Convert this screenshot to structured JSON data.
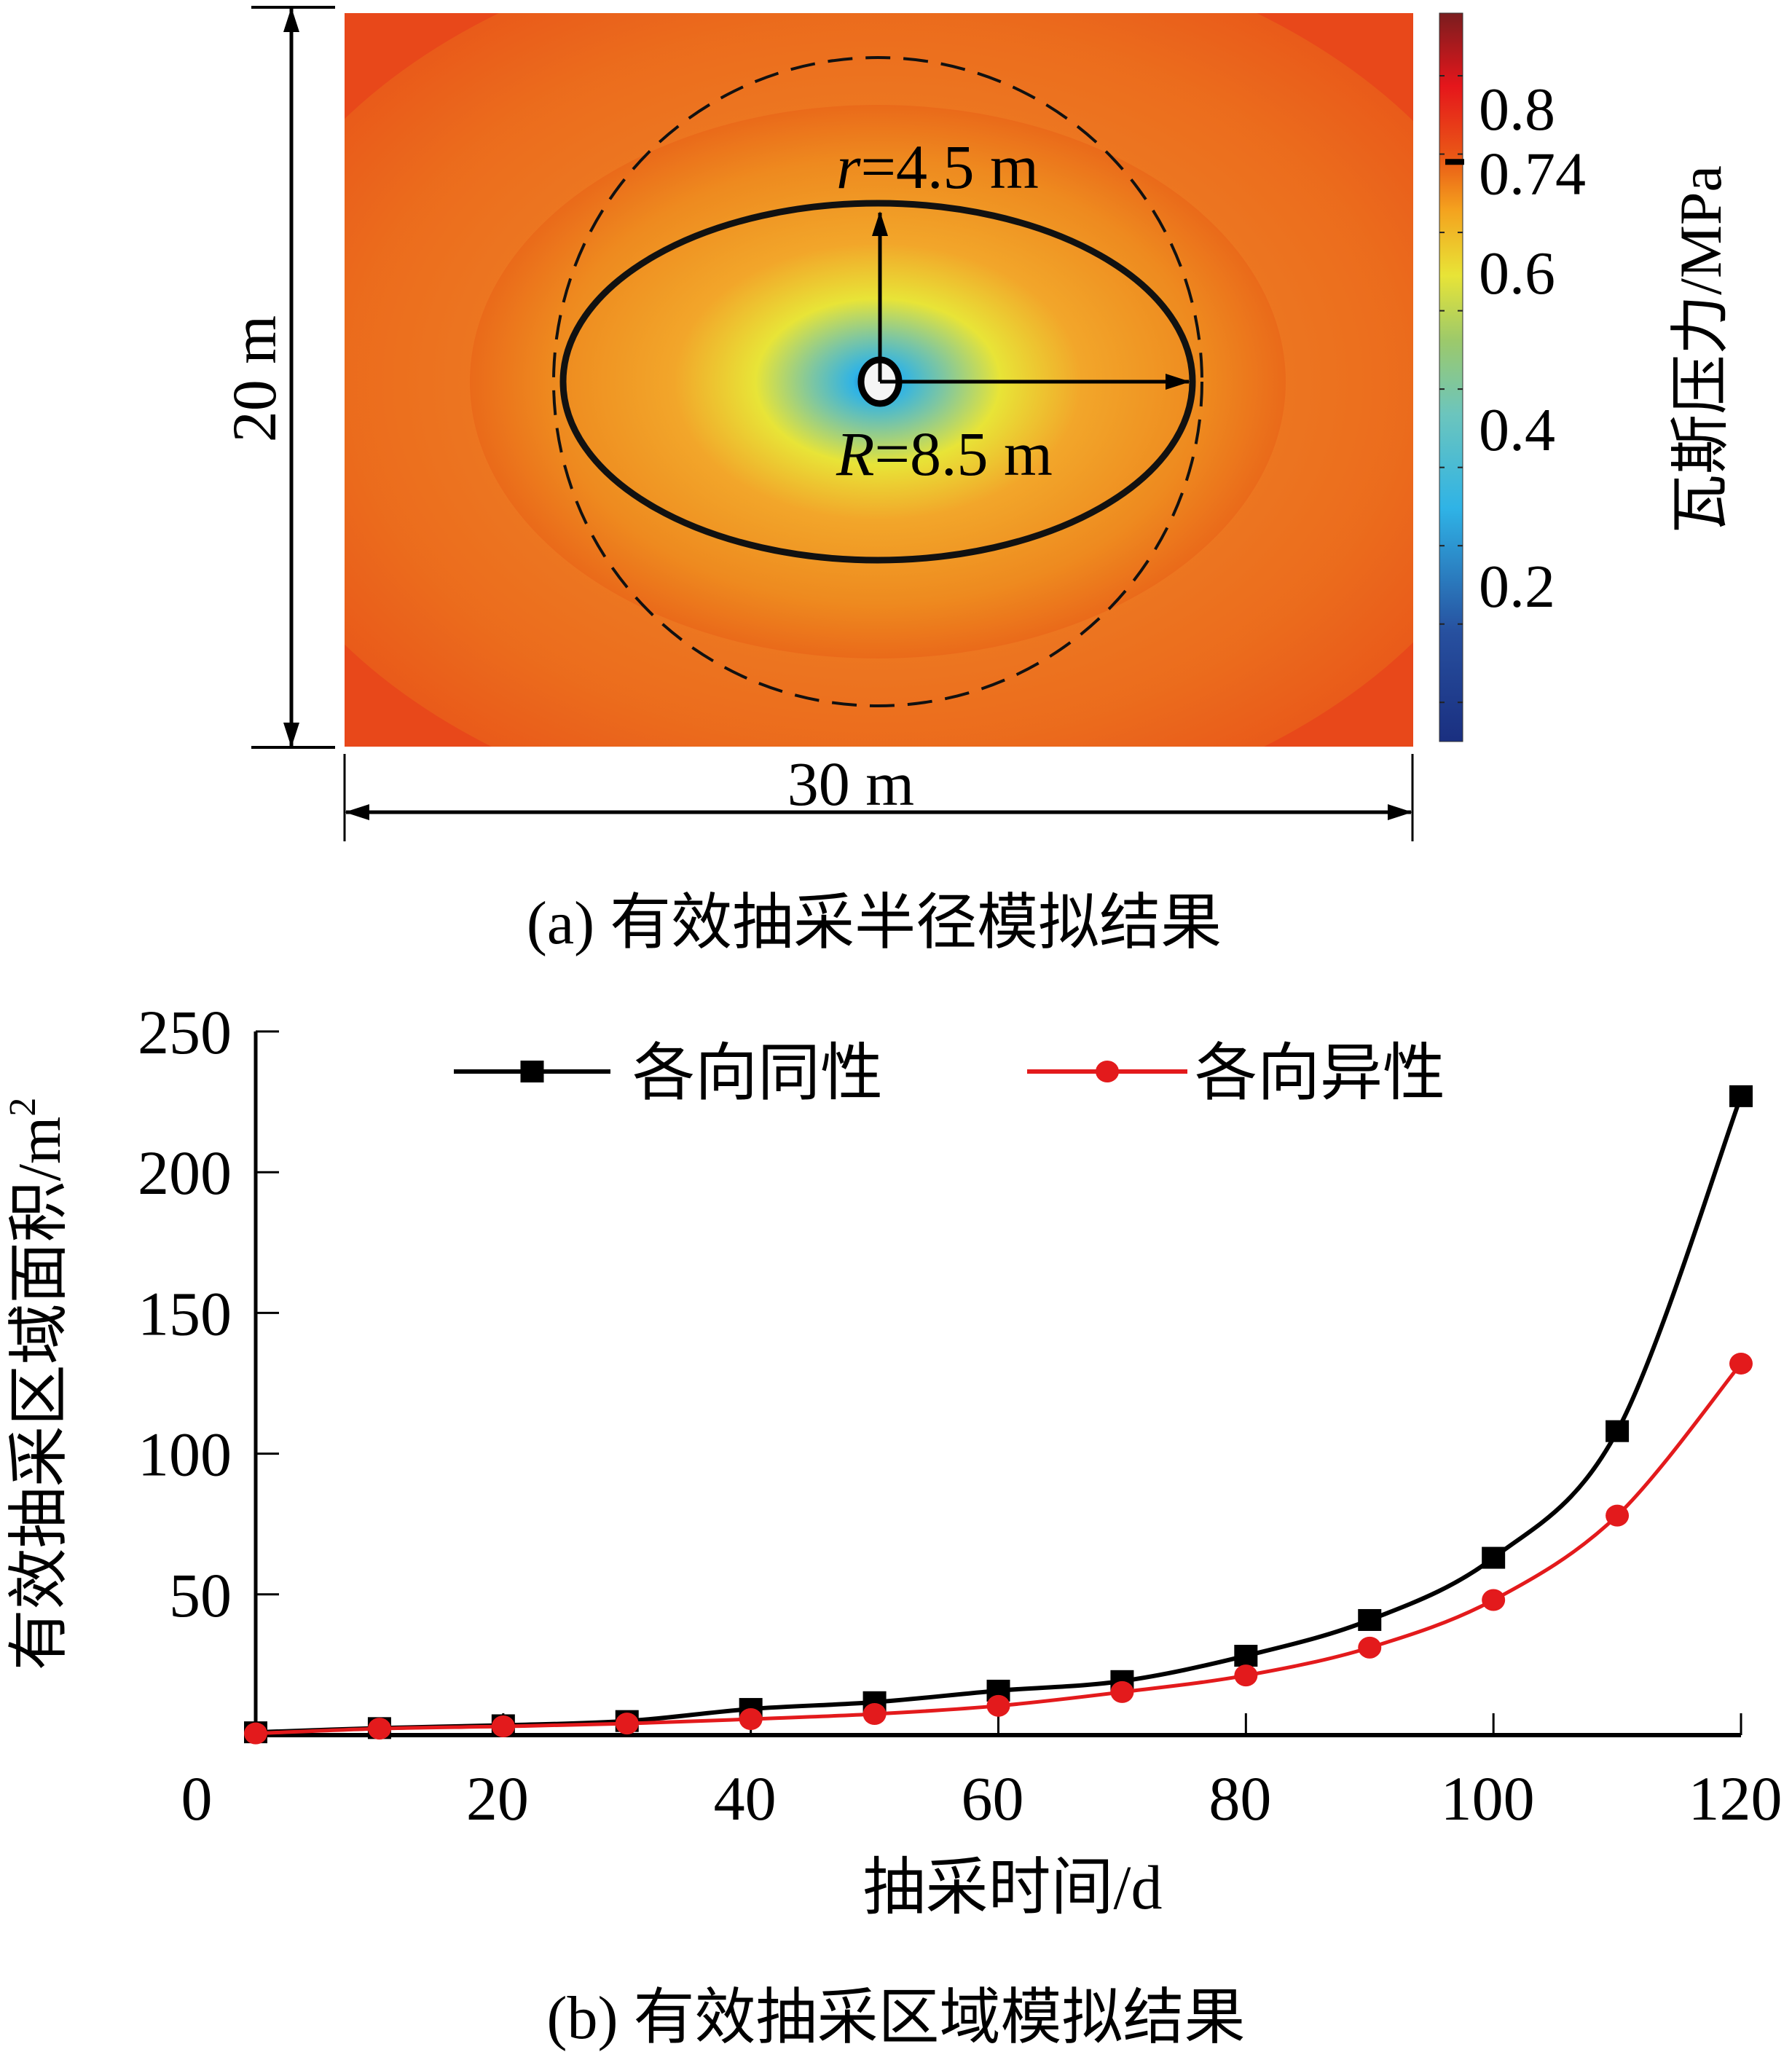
{
  "figure_a": {
    "caption": "(a) 有效抽采半径模拟结果",
    "width_label": "30 m",
    "height_label": "20 m",
    "r_label_var": "r",
    "r_label_rest": "=4.5 m",
    "R_label_var": "R",
    "R_label_rest": "=8.5 m",
    "colorbar": {
      "title": "瓦斯压力/MPa",
      "ticks": [
        "0.8",
        "0.74",
        "0.6",
        "0.4",
        "0.2"
      ],
      "tick_values": [
        0.8,
        0.74,
        0.6,
        0.4,
        0.2
      ],
      "range": [
        0.0,
        0.93
      ],
      "highlight_value": 0.74,
      "colors": [
        "#1a2f80",
        "#2a5bb0",
        "#2fb3e6",
        "#6cc5bd",
        "#9cc96b",
        "#e8e437",
        "#f4a21e",
        "#ea5a16",
        "#e5161b",
        "#7a1d1f"
      ]
    },
    "domain_m": {
      "width": 30,
      "height": 20
    },
    "ellipse_m": {
      "major_radius": 8.5,
      "minor_radius": 4.5
    },
    "background_color": "#e84a1a"
  },
  "chart_data": {
    "type": "line",
    "title": "",
    "caption": "(b) 有效抽采区域模拟结果",
    "xlabel": "抽采时间/d",
    "ylabel": "有效抽采区域面积/m",
    "ylabel_sup": "2",
    "xlim": [
      0,
      120
    ],
    "ylim": [
      0,
      250
    ],
    "x_ticks": [
      0,
      20,
      40,
      60,
      80,
      100,
      120
    ],
    "x_tick_labels": [
      "0",
      "20",
      "40",
      "60",
      "80",
      "100",
      "120"
    ],
    "y_ticks": [
      50,
      100,
      150,
      200,
      250
    ],
    "y_tick_labels": [
      "50",
      "100",
      "150",
      "200",
      "250"
    ],
    "grid": false,
    "legend_position": "top",
    "x": [
      0,
      10,
      20,
      30,
      40,
      50,
      60,
      70,
      80,
      90,
      100,
      110,
      120
    ],
    "series": [
      {
        "name": "各向同性",
        "color": "#000000",
        "marker": "square",
        "values": [
          1.0,
          2.5,
          3.5,
          5.0,
          9.3,
          11.7,
          15.8,
          19.2,
          28.2,
          40.9,
          63.0,
          108.0,
          227.0
        ]
      },
      {
        "name": "各向异性",
        "color": "#e31a1c",
        "marker": "circle",
        "values": [
          0.6,
          2.3,
          3.1,
          4.1,
          5.7,
          7.5,
          10.4,
          15.3,
          21.2,
          31.1,
          48.0,
          78.0,
          132.0
        ]
      }
    ]
  }
}
